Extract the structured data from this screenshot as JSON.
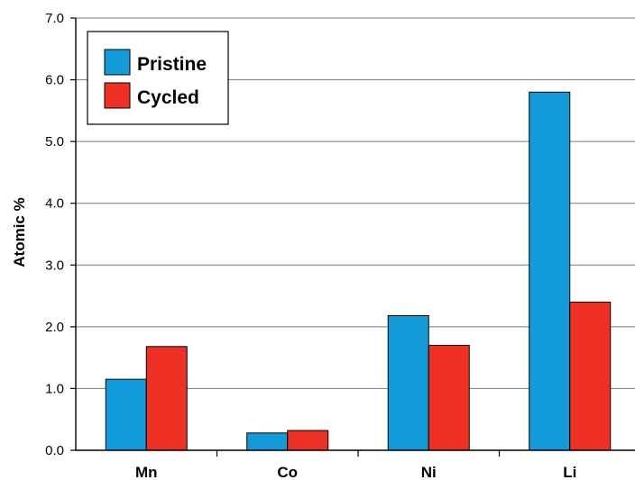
{
  "chart_data": {
    "type": "bar",
    "categories": [
      "Mn",
      "Co",
      "Ni",
      "Li"
    ],
    "series": [
      {
        "name": "Pristine",
        "values": [
          1.15,
          0.28,
          2.18,
          5.8
        ],
        "color": "#129bd8"
      },
      {
        "name": "Cycled",
        "values": [
          1.68,
          0.32,
          1.7,
          2.4
        ],
        "color": "#ee3124"
      }
    ],
    "title": "",
    "xlabel": "",
    "ylabel": "Atomic %",
    "ylim": [
      0,
      7
    ],
    "yticks": [
      "0.0",
      "1.0",
      "2.0",
      "3.0",
      "4.0",
      "5.0",
      "6.0",
      "7.0"
    ],
    "grid": true,
    "legend_position": "top-left"
  }
}
